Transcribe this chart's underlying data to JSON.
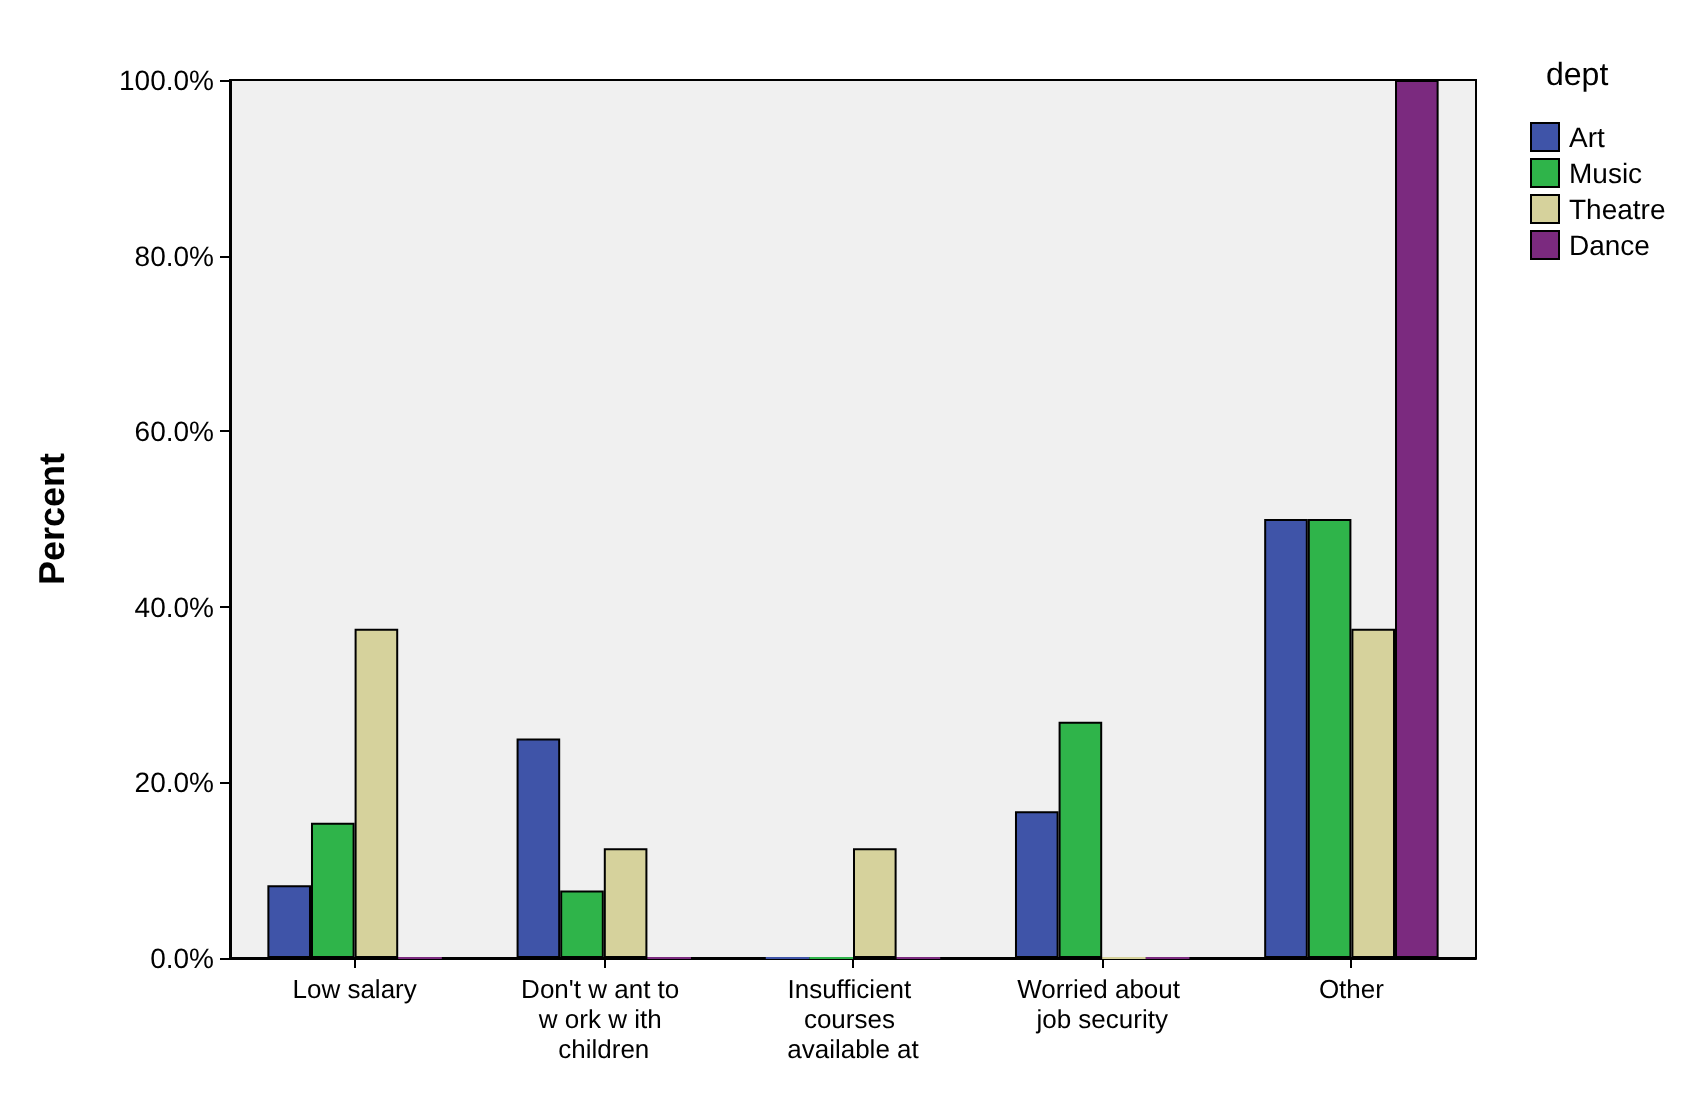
{
  "chart_data": {
    "type": "bar",
    "ylabel": "Percent",
    "legend_title": "dept",
    "legend": "top right",
    "grid": false,
    "categories": [
      "Low salary",
      "Don't w ant to w ork w ith children",
      "Insufficient courses available at",
      "Worried about job security",
      "Other"
    ],
    "series": [
      {
        "name": "Art",
        "color": "#3f54a8",
        "values": [
          8.3,
          25,
          0,
          16.7,
          50
        ]
      },
      {
        "name": "Music",
        "color": "#2fb44a",
        "values": [
          15.4,
          7.7,
          0,
          26.9,
          50
        ]
      },
      {
        "name": "Theatre",
        "color": "#d6d29c",
        "values": [
          37.5,
          12.5,
          12.5,
          0,
          37.5
        ]
      },
      {
        "name": "Dance",
        "color": "#7b2a7f",
        "values": [
          0,
          0,
          0,
          0,
          100
        ]
      }
    ],
    "ylim": [
      0,
      100
    ],
    "yticks": [
      {
        "value": 0,
        "label": "0.0%"
      },
      {
        "value": 20,
        "label": "20.0%"
      },
      {
        "value": 40,
        "label": "40.0%"
      },
      {
        "value": 60,
        "label": "60.0%"
      },
      {
        "value": 80,
        "label": "80.0%"
      },
      {
        "value": 100,
        "label": "100.0%"
      }
    ]
  }
}
